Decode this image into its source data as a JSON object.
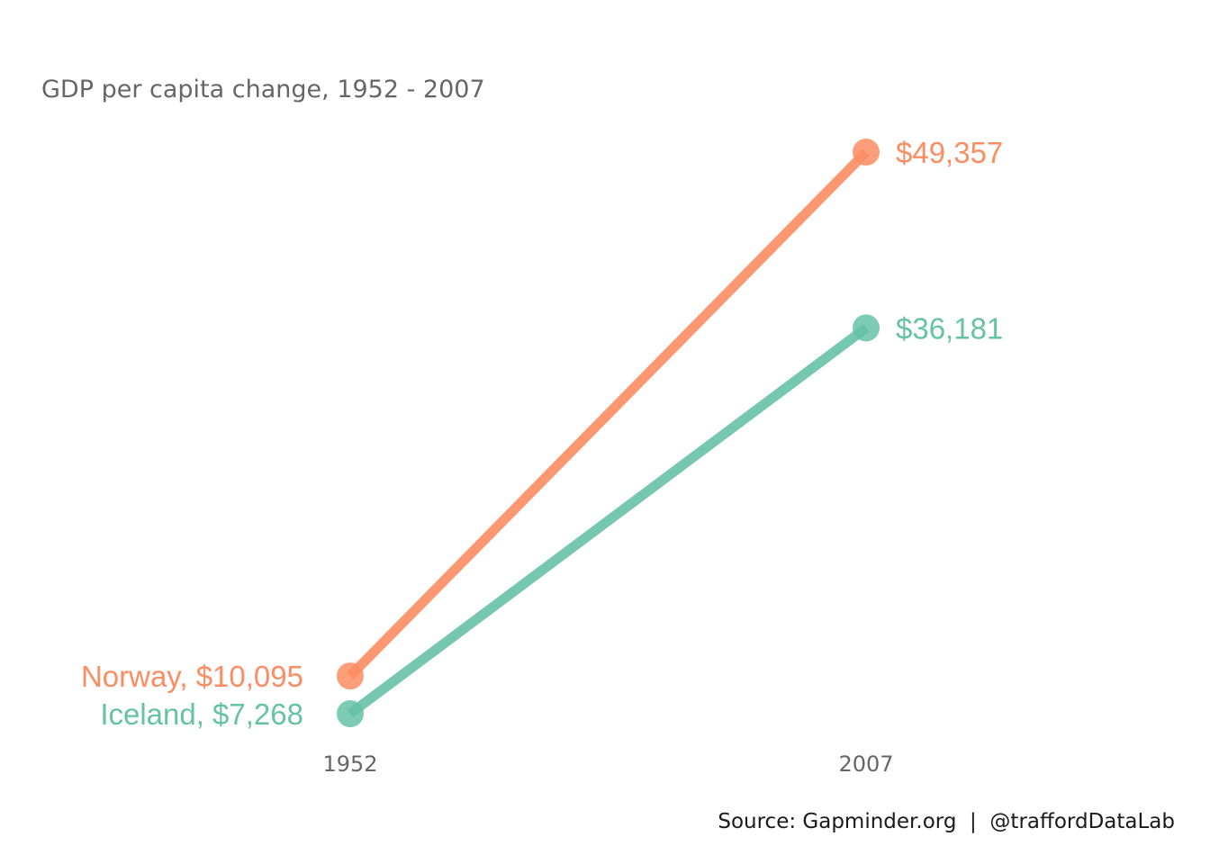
{
  "chart_data": {
    "type": "line",
    "title": "GDP per capita change, 1952 - 2007",
    "x": [
      "1952",
      "2007"
    ],
    "series": [
      {
        "name": "Norway",
        "values": [
          10095,
          49357
        ],
        "color": "#fc8d62",
        "start_label": "Norway, $10,095",
        "end_label": "$49,357"
      },
      {
        "name": "Iceland",
        "values": [
          7268,
          36181
        ],
        "color": "#66c2a5",
        "start_label": "Iceland, $7,268",
        "end_label": "$36,181"
      }
    ],
    "caption": "Source: Gapminder.org  |  @traffordDataLab",
    "grid": false,
    "legend": "none"
  }
}
